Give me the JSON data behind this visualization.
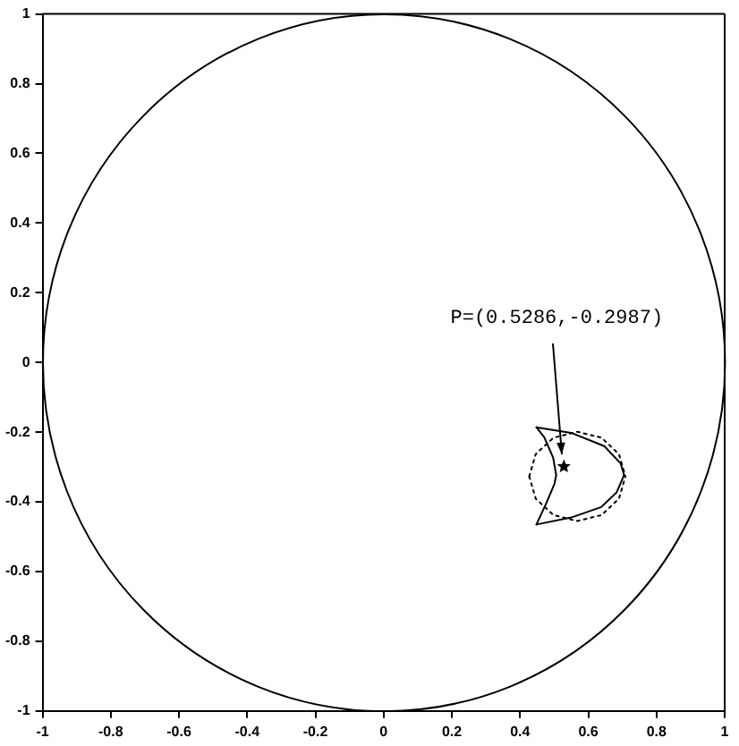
{
  "chart_data": {
    "type": "line",
    "xlim": [
      -1,
      1
    ],
    "ylim": [
      -1,
      1
    ],
    "xticks": [
      -1,
      -0.8,
      -0.6,
      -0.4,
      -0.2,
      0,
      0.2,
      0.4,
      0.6,
      0.8,
      1
    ],
    "yticks": [
      -1,
      -0.8,
      -0.6,
      -0.4,
      -0.2,
      0,
      0.2,
      0.4,
      0.6,
      0.8,
      1
    ],
    "annotations": [
      {
        "text": "P=(0.5286,-0.2987)",
        "x": 0.5286,
        "y": -0.2987
      }
    ],
    "series": [
      {
        "type": "line",
        "color": "#000000",
        "marker": "none",
        "line_style": "solid",
        "x": [
          0.448,
          0.55,
          0.647,
          0.695,
          0.705
        ],
        "values": [
          -0.186,
          -0.202,
          -0.24,
          -0.29,
          -0.323
        ]
      },
      {
        "type": "line",
        "color": "#000000",
        "marker": "none",
        "line_style": "solid",
        "x": [
          0.448,
          0.55,
          0.638,
          0.683,
          0.705
        ],
        "values": [
          -0.465,
          -0.445,
          -0.415,
          -0.373,
          -0.323
        ]
      },
      {
        "type": "line",
        "color": "#000000",
        "marker": "none",
        "line_style": "solid",
        "x": [
          0.448,
          0.471,
          0.497,
          0.506,
          0.501,
          0.476,
          0.448
        ],
        "values": [
          -0.186,
          -0.215,
          -0.273,
          -0.323,
          -0.348,
          -0.406,
          -0.465
        ]
      },
      {
        "type": "line",
        "color": "#000000",
        "marker": "none",
        "line_style": "dotted",
        "x": [
          0.427,
          0.446,
          0.498,
          0.568,
          0.639,
          0.69,
          0.709
        ],
        "values": [
          -0.327,
          -0.263,
          -0.216,
          -0.199,
          -0.216,
          -0.263,
          -0.327
        ]
      },
      {
        "type": "line",
        "color": "#000000",
        "marker": "none",
        "line_style": "dotted",
        "x": [
          0.427,
          0.446,
          0.498,
          0.568,
          0.639,
          0.69,
          0.709
        ],
        "values": [
          -0.327,
          -0.391,
          -0.438,
          -0.455,
          -0.438,
          -0.391,
          -0.327
        ]
      },
      {
        "type": "scatter",
        "color": "#000000",
        "marker": "star",
        "x": [
          0.5286
        ],
        "values": [
          -0.2987
        ]
      }
    ]
  }
}
